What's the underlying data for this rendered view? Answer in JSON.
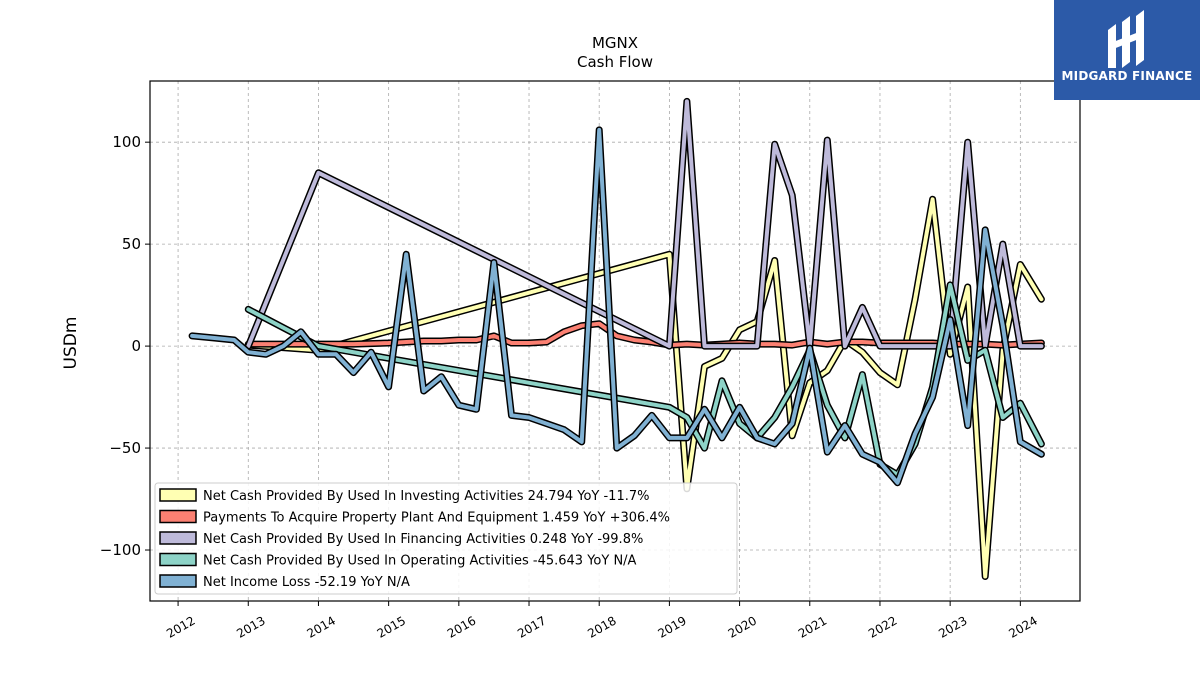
{
  "logo": {
    "text": "MIDGARD FINANCE",
    "bg": "#2c5aa8"
  },
  "chart_data": {
    "type": "line",
    "title": "MGNX",
    "subtitle": "Cash Flow",
    "ylabel": "USDm",
    "xlabel": "",
    "xlim": [
      2011.6,
      2024.85
    ],
    "ylim": [
      -125,
      130
    ],
    "yticks": [
      -100,
      -50,
      0,
      50,
      100
    ],
    "ytick_labels": [
      "−100",
      "−50",
      "0",
      "50",
      "100"
    ],
    "xticks": [
      2012,
      2013,
      2014,
      2015,
      2016,
      2017,
      2018,
      2019,
      2020,
      2021,
      2022,
      2023,
      2024
    ],
    "grid": true,
    "legend_position": "lower-left",
    "series": [
      {
        "name": "Net Cash Provided By Used In Investing Activities",
        "legend": "Net Cash Provided By Used In Investing Activities  24.794 YoY -11.7%",
        "color": "#ffffb3",
        "x": [
          2013.0,
          2014.0,
          2019.0,
          2019.25,
          2019.5,
          2019.75,
          2020.0,
          2020.25,
          2020.5,
          2020.75,
          2021.0,
          2021.25,
          2021.5,
          2021.75,
          2022.0,
          2022.25,
          2022.5,
          2022.75,
          2023.0,
          2023.25,
          2023.5,
          2023.75,
          2024.0,
          2024.3
        ],
        "y": [
          0.5,
          -2,
          45,
          -70,
          -10,
          -6,
          8,
          12,
          42,
          -44,
          -18,
          -12,
          3,
          -3,
          -13,
          -19,
          23,
          72,
          -4,
          29,
          -113,
          -2,
          40,
          23
        ]
      },
      {
        "name": "Payments To Acquire Property Plant And Equipment",
        "legend": "Payments To Acquire Property Plant And Equipment  1.459 YoY +306.4%",
        "color": "#fb8072",
        "x": [
          2013.0,
          2013.5,
          2014.0,
          2014.5,
          2015.0,
          2015.25,
          2015.5,
          2015.75,
          2016.0,
          2016.25,
          2016.5,
          2016.75,
          2017.0,
          2017.25,
          2017.5,
          2017.75,
          2018.0,
          2018.25,
          2018.5,
          2018.75,
          2019.0,
          2019.25,
          2019.5,
          2019.75,
          2020.0,
          2020.25,
          2020.5,
          2020.75,
          2021.0,
          2021.25,
          2021.5,
          2021.75,
          2022.0,
          2022.25,
          2022.5,
          2022.75,
          2023.0,
          2023.25,
          2023.5,
          2023.75,
          2024.0,
          2024.3
        ],
        "y": [
          1,
          1,
          1,
          1,
          1.5,
          2,
          2.5,
          2.5,
          3,
          3,
          5,
          1.5,
          1.5,
          2,
          7,
          10,
          11,
          5,
          3,
          2,
          0.5,
          1,
          0.5,
          1,
          1.5,
          1,
          1,
          0.5,
          2,
          1,
          2,
          2,
          1.5,
          1.5,
          1.5,
          1.5,
          1,
          1,
          1,
          0.5,
          1,
          1.5
        ]
      },
      {
        "name": "Net Cash Provided By Used In Financing Activities",
        "legend": "Net Cash Provided By Used In Financing Activities  0.248 YoY -99.8%",
        "color": "#bebada",
        "x": [
          2013.0,
          2014.0,
          2019.0,
          2019.25,
          2019.5,
          2019.75,
          2020.0,
          2020.25,
          2020.5,
          2020.75,
          2021.0,
          2021.25,
          2021.5,
          2021.75,
          2022.0,
          2022.25,
          2022.5,
          2022.75,
          2023.0,
          2023.25,
          2023.5,
          2023.75,
          2024.0,
          2024.3
        ],
        "y": [
          0,
          85,
          0,
          120,
          0,
          0,
          0,
          0,
          99,
          74,
          0,
          101,
          0,
          19,
          0,
          0,
          0,
          0,
          0,
          100,
          0,
          50,
          0,
          0
        ]
      },
      {
        "name": "Net Cash Provided By Used In Operating Activities",
        "legend": "Net Cash Provided By Used In Operating Activities  -45.643 YoY N/A",
        "color": "#8dd3c7",
        "x": [
          2013.0,
          2014.0,
          2019.0,
          2019.25,
          2019.5,
          2019.75,
          2020.0,
          2020.25,
          2020.5,
          2020.75,
          2021.0,
          2021.25,
          2021.5,
          2021.75,
          2022.0,
          2022.25,
          2022.5,
          2022.75,
          2023.0,
          2023.25,
          2023.5,
          2023.75,
          2024.0,
          2024.3
        ],
        "y": [
          18,
          0,
          -30,
          -35,
          -50,
          -17,
          -38,
          -45,
          -35,
          -20,
          -2,
          -29,
          -45,
          -14,
          -58,
          -63,
          -48,
          -20,
          30,
          -7,
          -2,
          -35,
          -28,
          -48
        ]
      },
      {
        "name": "Net Income Loss",
        "legend": "Net Income Loss  -52.19 YoY N/A",
        "color": "#80b1d3",
        "x": [
          2012.2,
          2012.5,
          2012.8,
          2013.0,
          2013.25,
          2013.5,
          2013.75,
          2014.0,
          2014.25,
          2014.5,
          2014.75,
          2015.0,
          2015.25,
          2015.5,
          2015.75,
          2016.0,
          2016.25,
          2016.5,
          2016.75,
          2017.0,
          2017.25,
          2017.5,
          2017.75,
          2018.0,
          2018.25,
          2018.5,
          2018.75,
          2019.0,
          2019.25,
          2019.5,
          2019.75,
          2020.0,
          2020.25,
          2020.5,
          2020.75,
          2021.0,
          2021.25,
          2021.5,
          2021.75,
          2022.0,
          2022.25,
          2022.5,
          2022.75,
          2023.0,
          2023.25,
          2023.5,
          2023.75,
          2024.0,
          2024.3
        ],
        "y": [
          5,
          4,
          3,
          -3,
          -4,
          0,
          7,
          -4,
          -4,
          -13,
          -3,
          -20,
          45,
          -22,
          -15,
          -29,
          -31,
          41,
          -34,
          -35,
          -38,
          -41,
          -47,
          106,
          -50,
          -44,
          -34,
          -45,
          -45,
          -31,
          -45,
          -30,
          -45,
          -48,
          -38,
          -1,
          -52,
          -39,
          -53,
          -57,
          -67,
          -43,
          -25,
          13,
          -39,
          57,
          10,
          -47,
          -53
        ]
      }
    ]
  }
}
